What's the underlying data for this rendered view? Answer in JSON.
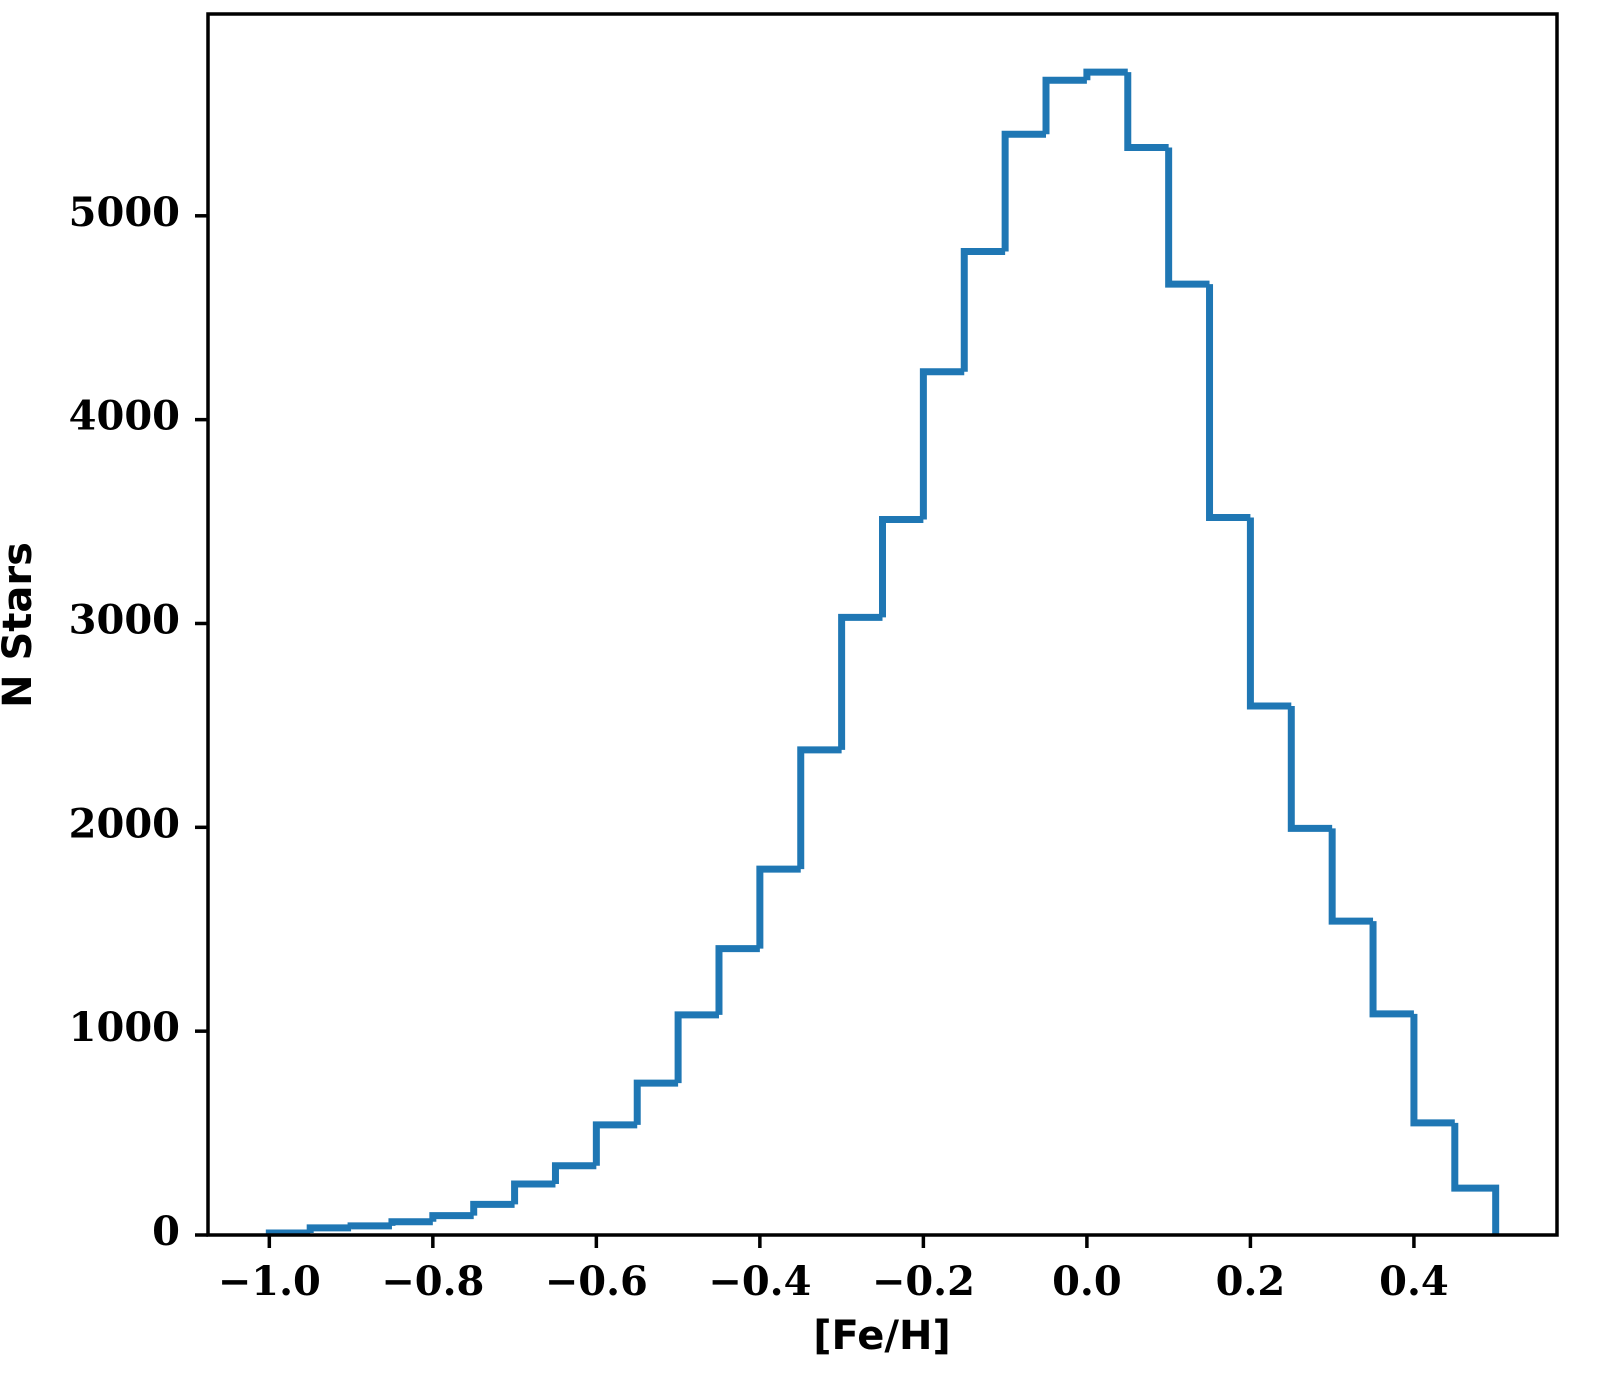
{
  "chart_data": {
    "type": "histogram",
    "xlabel": "[Fe/H]",
    "ylabel": "N Stars",
    "bins": [
      -1.0,
      -0.95,
      -0.9,
      -0.85,
      -0.8,
      -0.75,
      -0.7,
      -0.65,
      -0.6,
      -0.55,
      -0.5,
      -0.45,
      -0.4,
      -0.35,
      -0.3,
      -0.25,
      -0.2,
      -0.15,
      -0.1,
      -0.05,
      0.0,
      0.05,
      0.1,
      0.15,
      0.2,
      0.25,
      0.3,
      0.35,
      0.4,
      0.45,
      0.5
    ],
    "values": [
      10,
      35,
      45,
      65,
      95,
      150,
      250,
      340,
      540,
      745,
      1080,
      1405,
      1795,
      2380,
      3030,
      3510,
      4235,
      4825,
      5400,
      5665,
      5705,
      5335,
      4665,
      3520,
      2595,
      1995,
      1540,
      1085,
      550,
      230
    ],
    "color": "#1f77b4",
    "xlim": [
      -1.075,
      0.575
    ],
    "ylim": [
      0,
      5990
    ],
    "xticks": [
      {
        "value": -1.0,
        "label": "−1.0"
      },
      {
        "value": -0.8,
        "label": "−0.8"
      },
      {
        "value": -0.6,
        "label": "−0.6"
      },
      {
        "value": -0.4,
        "label": "−0.4"
      },
      {
        "value": -0.2,
        "label": "−0.2"
      },
      {
        "value": 0.0,
        "label": "0.0"
      },
      0.2,
      0.4
    ],
    "yticks": [
      0,
      1000,
      2000,
      3000,
      4000,
      5000
    ]
  }
}
